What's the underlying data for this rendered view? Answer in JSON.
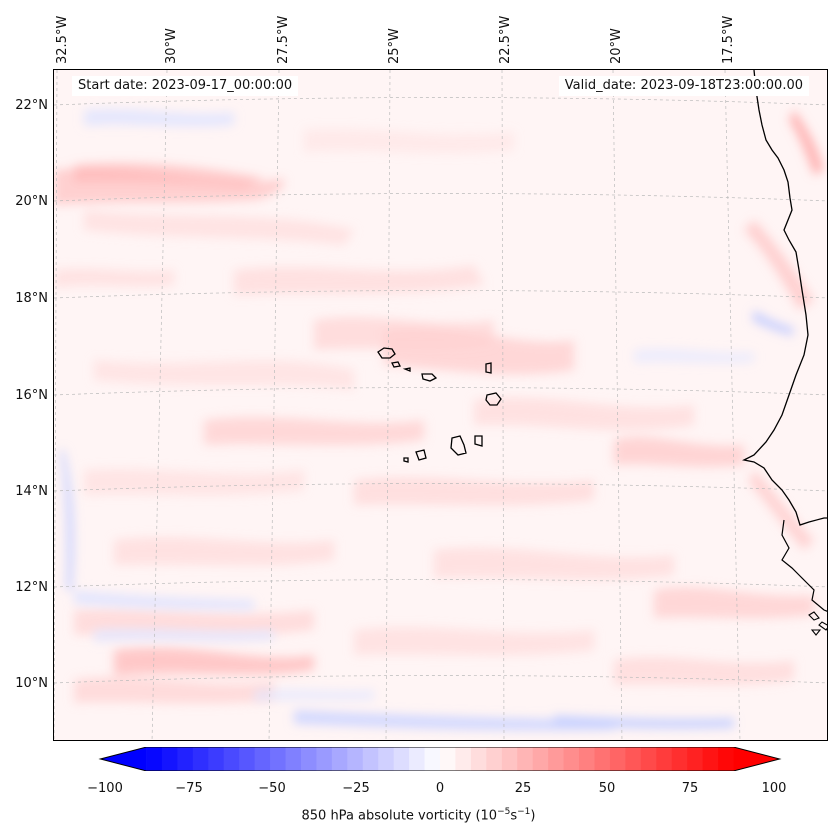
{
  "header": {
    "start_date": "Start date: 2023-09-17_00:00:00",
    "valid_date": "Valid_date: 2023-09-18T23:00:00.00"
  },
  "axes": {
    "longitude_labels": [
      "32.5°W",
      "30°W",
      "27.5°W",
      "25°W",
      "22.5°W",
      "20°W",
      "17.5°W"
    ],
    "latitude_labels": [
      "22°N",
      "20°N",
      "18°N",
      "16°N",
      "14°N",
      "12°N",
      "10°N"
    ]
  },
  "colorbar": {
    "tick_labels": [
      "−100",
      "−75",
      "−50",
      "−25",
      "0",
      "25",
      "50",
      "75",
      "100"
    ],
    "title": "850 hPa absolute vorticity (10",
    "title_exp1": "−5",
    "title_mid": "s",
    "title_exp2": "−1",
    "title_end": ")",
    "range": [
      -100,
      100
    ],
    "low_color": "#0000ff",
    "mid_color": "#ffffff",
    "high_color": "#ff0000"
  },
  "colors": {
    "background_field": "#fff3f3",
    "positive_tint": "#ffd9d9",
    "negative_tint": "#e4e8ff",
    "coastline": "#000000",
    "gridline": "#cccccc"
  }
}
